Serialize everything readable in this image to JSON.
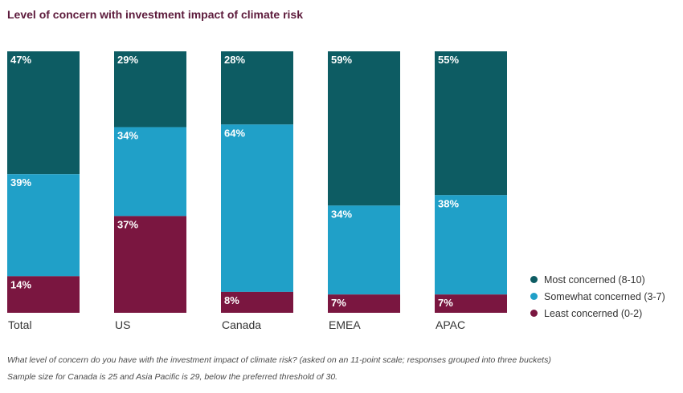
{
  "colors": {
    "most": "#0d5c63",
    "somewhat": "#20a0c8",
    "least": "#7a1640"
  },
  "chart_data": {
    "type": "bar",
    "stacked": true,
    "title": "Level of concern with investment impact of climate risk",
    "categories": [
      "Total",
      "US",
      "Canada",
      "EMEA",
      "APAC"
    ],
    "series": [
      {
        "name": "Most concerned (8-10)",
        "values": [
          47,
          29,
          28,
          59,
          55
        ],
        "labels": [
          "47%",
          "29%",
          "28%",
          "59%",
          "55%"
        ]
      },
      {
        "name": "Somewhat concerned (3-7)",
        "values": [
          39,
          34,
          64,
          34,
          38
        ],
        "labels": [
          "39%",
          "34%",
          "64%",
          "34%",
          "38%"
        ]
      },
      {
        "name": "Least concerned (0-2)",
        "values": [
          14,
          37,
          8,
          7,
          7
        ],
        "labels": [
          "14%",
          "37%",
          "8%",
          "7%",
          "7%"
        ]
      }
    ],
    "ylim": [
      0,
      100
    ],
    "legend_position": "bottom-right",
    "grid": false
  },
  "footnotes": [
    "What level of concern do you have with the investment impact of climate risk? (asked on an 11-point scale; responses grouped into three buckets)",
    "Sample size for Canada is 25 and Asia Pacific is 29, below the preferred threshold of 30."
  ]
}
